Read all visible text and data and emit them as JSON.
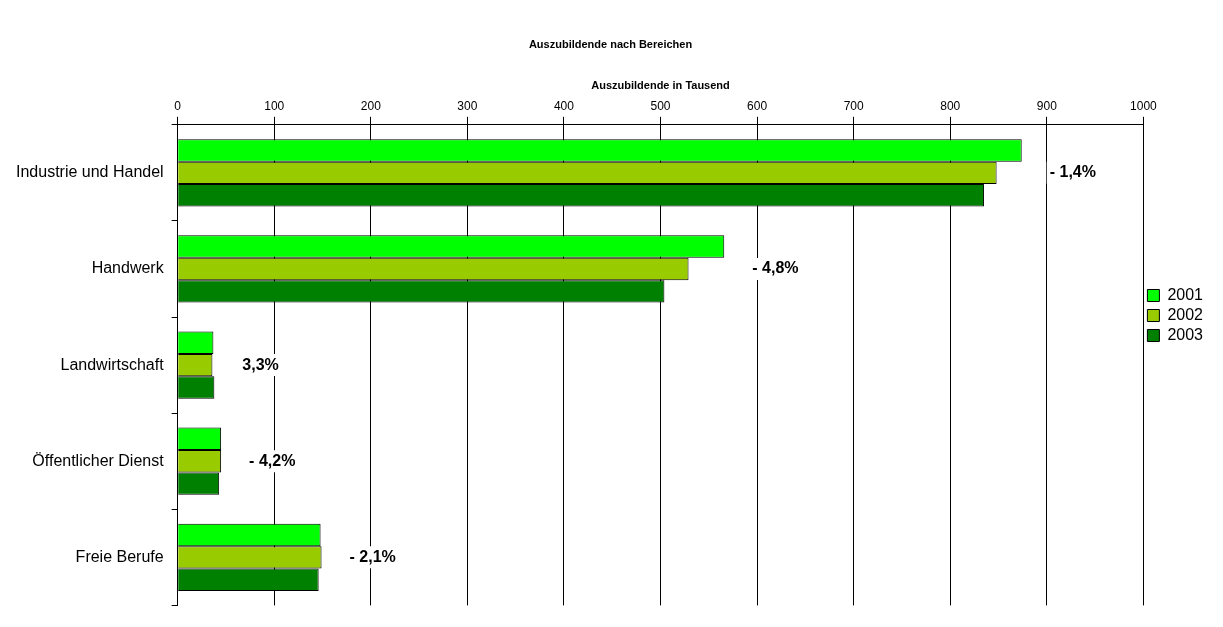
{
  "chart_data": {
    "type": "bar",
    "orientation": "horizontal",
    "title": "Auszubildende nach Bereichen",
    "xlabel": "Auszubildende in Tausend",
    "categories": [
      "Industrie und Handel",
      "Handwerk",
      "Landwirtschaft",
      "Öffentlicher Dienst",
      "Freie Berufe"
    ],
    "series": [
      {
        "name": "2001",
        "color": "#00ff00",
        "values": [
          874,
          566,
          37,
          45,
          148
        ]
      },
      {
        "name": "2002",
        "color": "#99cc00",
        "values": [
          848,
          529,
          36,
          45,
          149
        ]
      },
      {
        "name": "2003",
        "color": "#008000",
        "values": [
          835,
          504,
          38,
          43,
          146
        ]
      }
    ],
    "xlim": [
      0,
      1000
    ],
    "xticks": [
      0,
      100,
      200,
      300,
      400,
      500,
      600,
      700,
      800,
      900,
      1000
    ],
    "grid": "x",
    "legend": "right",
    "annotations": [
      "- 1,4%",
      "- 4,8%",
      "3,3%",
      "- 4,2%",
      "- 2,1%"
    ]
  }
}
